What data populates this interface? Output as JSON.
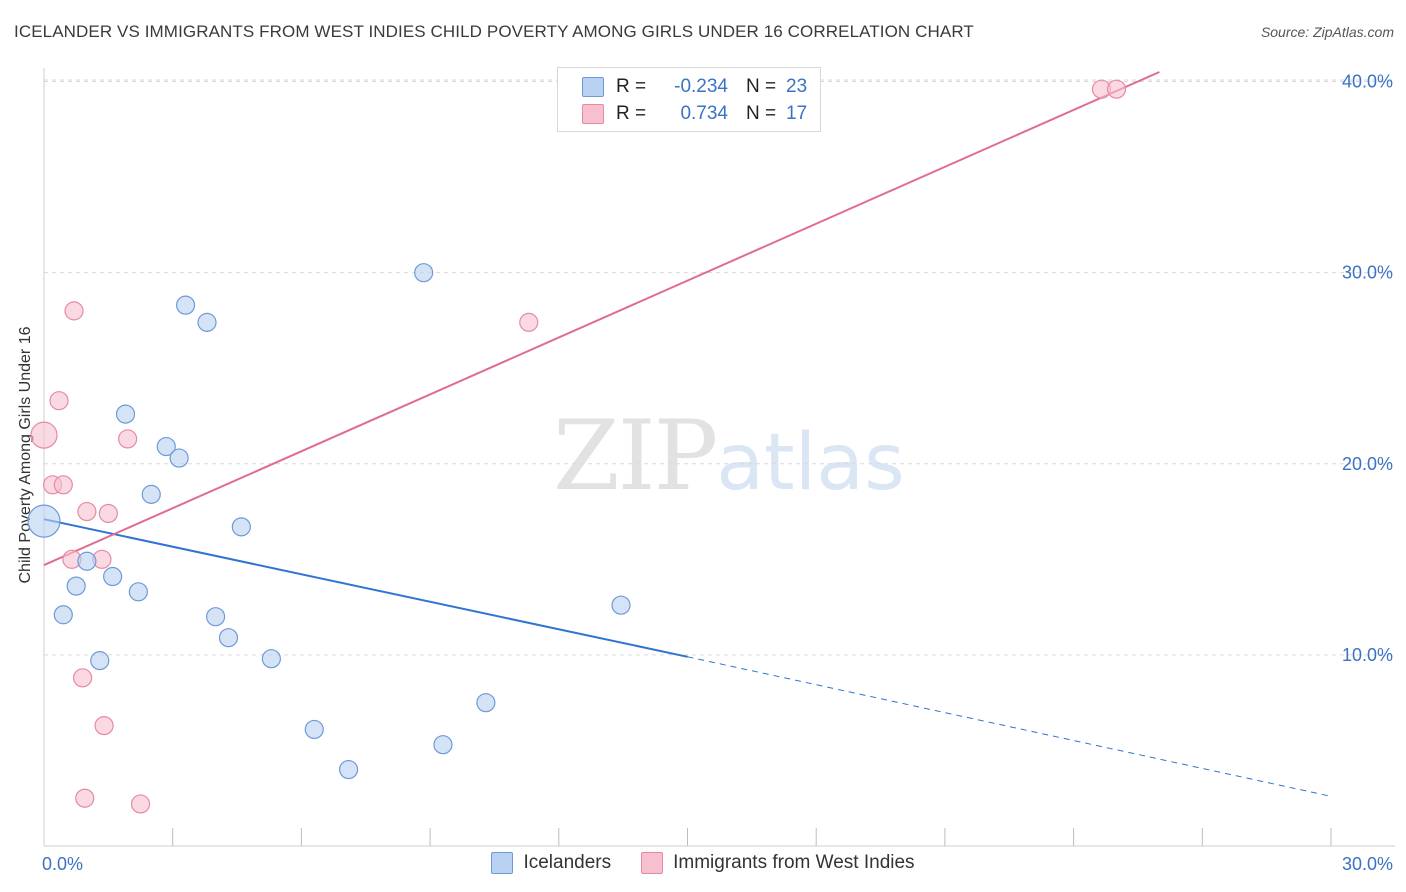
{
  "header": {
    "title": "ICELANDER VS IMMIGRANTS FROM WEST INDIES CHILD POVERTY AMONG GIRLS UNDER 16 CORRELATION CHART",
    "source": "Source: ZipAtlas.com"
  },
  "watermark": {
    "zip": "ZIP",
    "atlas": "atlas"
  },
  "legend": {
    "r_label": "R =",
    "n_label": "N =",
    "series": [
      {
        "name": "Icelanders",
        "r": "-0.234",
        "n": "23",
        "fill": "#b9d1f2",
        "stroke": "#6f9ad6"
      },
      {
        "name": "Immigrants from West Indies",
        "r": "0.734",
        "n": "17",
        "fill": "#f7c0cf",
        "stroke": "#e58aa5"
      }
    ]
  },
  "colors": {
    "blue_line": "#2f74d0",
    "pink_line": "#e06b93",
    "grid": "#d9d9d9",
    "tick_text": "#3a72c4"
  },
  "chart_data": {
    "type": "scatter",
    "title": "ICELANDER VS IMMIGRANTS FROM WEST INDIES CHILD POVERTY AMONG GIRLS UNDER 16 CORRELATION CHART",
    "xlabel": "",
    "ylabel": "Child Poverty Among Girls Under 16",
    "xlim": [
      0,
      30
    ],
    "ylim": [
      0,
      40.5
    ],
    "x_tick_labels": [
      "0.0%",
      "30.0%"
    ],
    "y_ticks": [
      10,
      20,
      30,
      40
    ],
    "y_tick_labels": [
      "10.0%",
      "20.0%",
      "30.0%",
      "40.0%"
    ],
    "grid": true,
    "legend_position": "top-center",
    "series": [
      {
        "name": "Icelanders",
        "points": [
          {
            "x": 0.0,
            "y": 17.0,
            "size": 16
          },
          {
            "x": 0.45,
            "y": 12.1,
            "size": 9
          },
          {
            "x": 0.75,
            "y": 13.6,
            "size": 9
          },
          {
            "x": 1.0,
            "y": 14.9,
            "size": 9
          },
          {
            "x": 1.3,
            "y": 9.7,
            "size": 9
          },
          {
            "x": 1.6,
            "y": 14.1,
            "size": 9
          },
          {
            "x": 1.9,
            "y": 22.6,
            "size": 9
          },
          {
            "x": 2.2,
            "y": 13.3,
            "size": 9
          },
          {
            "x": 2.5,
            "y": 18.4,
            "size": 9
          },
          {
            "x": 2.85,
            "y": 20.9,
            "size": 9
          },
          {
            "x": 3.15,
            "y": 20.3,
            "size": 9
          },
          {
            "x": 3.3,
            "y": 28.3,
            "size": 9
          },
          {
            "x": 3.8,
            "y": 27.4,
            "size": 9
          },
          {
            "x": 4.0,
            "y": 12.0,
            "size": 9
          },
          {
            "x": 4.3,
            "y": 10.9,
            "size": 9
          },
          {
            "x": 4.6,
            "y": 16.7,
            "size": 9
          },
          {
            "x": 5.3,
            "y": 9.8,
            "size": 9
          },
          {
            "x": 6.3,
            "y": 6.1,
            "size": 9
          },
          {
            "x": 7.1,
            "y": 4.0,
            "size": 9
          },
          {
            "x": 8.85,
            "y": 30.0,
            "size": 9
          },
          {
            "x": 9.3,
            "y": 5.3,
            "size": 9
          },
          {
            "x": 10.3,
            "y": 7.5,
            "size": 9
          },
          {
            "x": 13.45,
            "y": 12.6,
            "size": 9
          }
        ],
        "trend": {
          "x": [
            0,
            15
          ],
          "y": [
            17.1,
            9.9
          ],
          "dashed_extension_to_x": 30,
          "dashed_extension_y": 2.6
        }
      },
      {
        "name": "Immigrants from West Indies",
        "points": [
          {
            "x": 0.0,
            "y": 21.5,
            "size": 13
          },
          {
            "x": 0.2,
            "y": 18.9,
            "size": 9
          },
          {
            "x": 0.35,
            "y": 23.3,
            "size": 9
          },
          {
            "x": 0.45,
            "y": 18.9,
            "size": 9
          },
          {
            "x": 0.65,
            "y": 15.0,
            "size": 9
          },
          {
            "x": 0.7,
            "y": 28.0,
            "size": 9
          },
          {
            "x": 0.9,
            "y": 8.8,
            "size": 9
          },
          {
            "x": 0.95,
            "y": 2.5,
            "size": 9
          },
          {
            "x": 1.0,
            "y": 17.5,
            "size": 9
          },
          {
            "x": 1.35,
            "y": 15.0,
            "size": 9
          },
          {
            "x": 1.4,
            "y": 6.3,
            "size": 9
          },
          {
            "x": 1.5,
            "y": 17.4,
            "size": 9
          },
          {
            "x": 1.95,
            "y": 21.3,
            "size": 9
          },
          {
            "x": 2.25,
            "y": 2.2,
            "size": 9
          },
          {
            "x": 11.3,
            "y": 27.4,
            "size": 9
          },
          {
            "x": 24.65,
            "y": 39.6,
            "size": 9
          },
          {
            "x": 25.0,
            "y": 39.6,
            "size": 9
          }
        ],
        "trend": {
          "x": [
            0,
            26.0
          ],
          "y": [
            14.7,
            40.5
          ]
        }
      }
    ]
  }
}
